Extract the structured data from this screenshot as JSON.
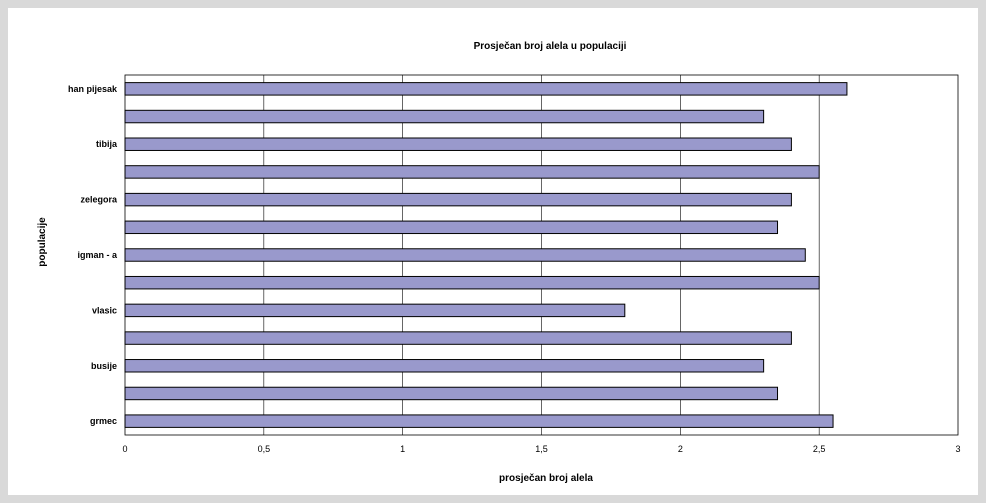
{
  "chart_data": {
    "type": "bar",
    "orientation": "horizontal",
    "title": "Prosječan broj alela u populaciji",
    "xlabel": "prosječan broj alela",
    "ylabel": "populacije",
    "categories": [
      "han pijesak",
      "",
      "tibija",
      "",
      "zelegora",
      "",
      "igman - a",
      "",
      "vlasic",
      "",
      "busije",
      "",
      "grmec"
    ],
    "values": [
      2.6,
      2.3,
      2.4,
      2.5,
      2.4,
      2.35,
      2.45,
      2.5,
      1.8,
      2.4,
      2.3,
      2.35,
      2.55
    ],
    "xlim": [
      0,
      3
    ],
    "xticks": [
      "0",
      "0,5",
      "1",
      "1,5",
      "2",
      "2,5",
      "3"
    ],
    "grid": "vertical",
    "legend": "none",
    "colors": {
      "bar": "#9999cc",
      "bar_stroke": "#000000",
      "grid": "#000000",
      "background": "#ffffff",
      "outer": "#d9d9d9"
    }
  }
}
